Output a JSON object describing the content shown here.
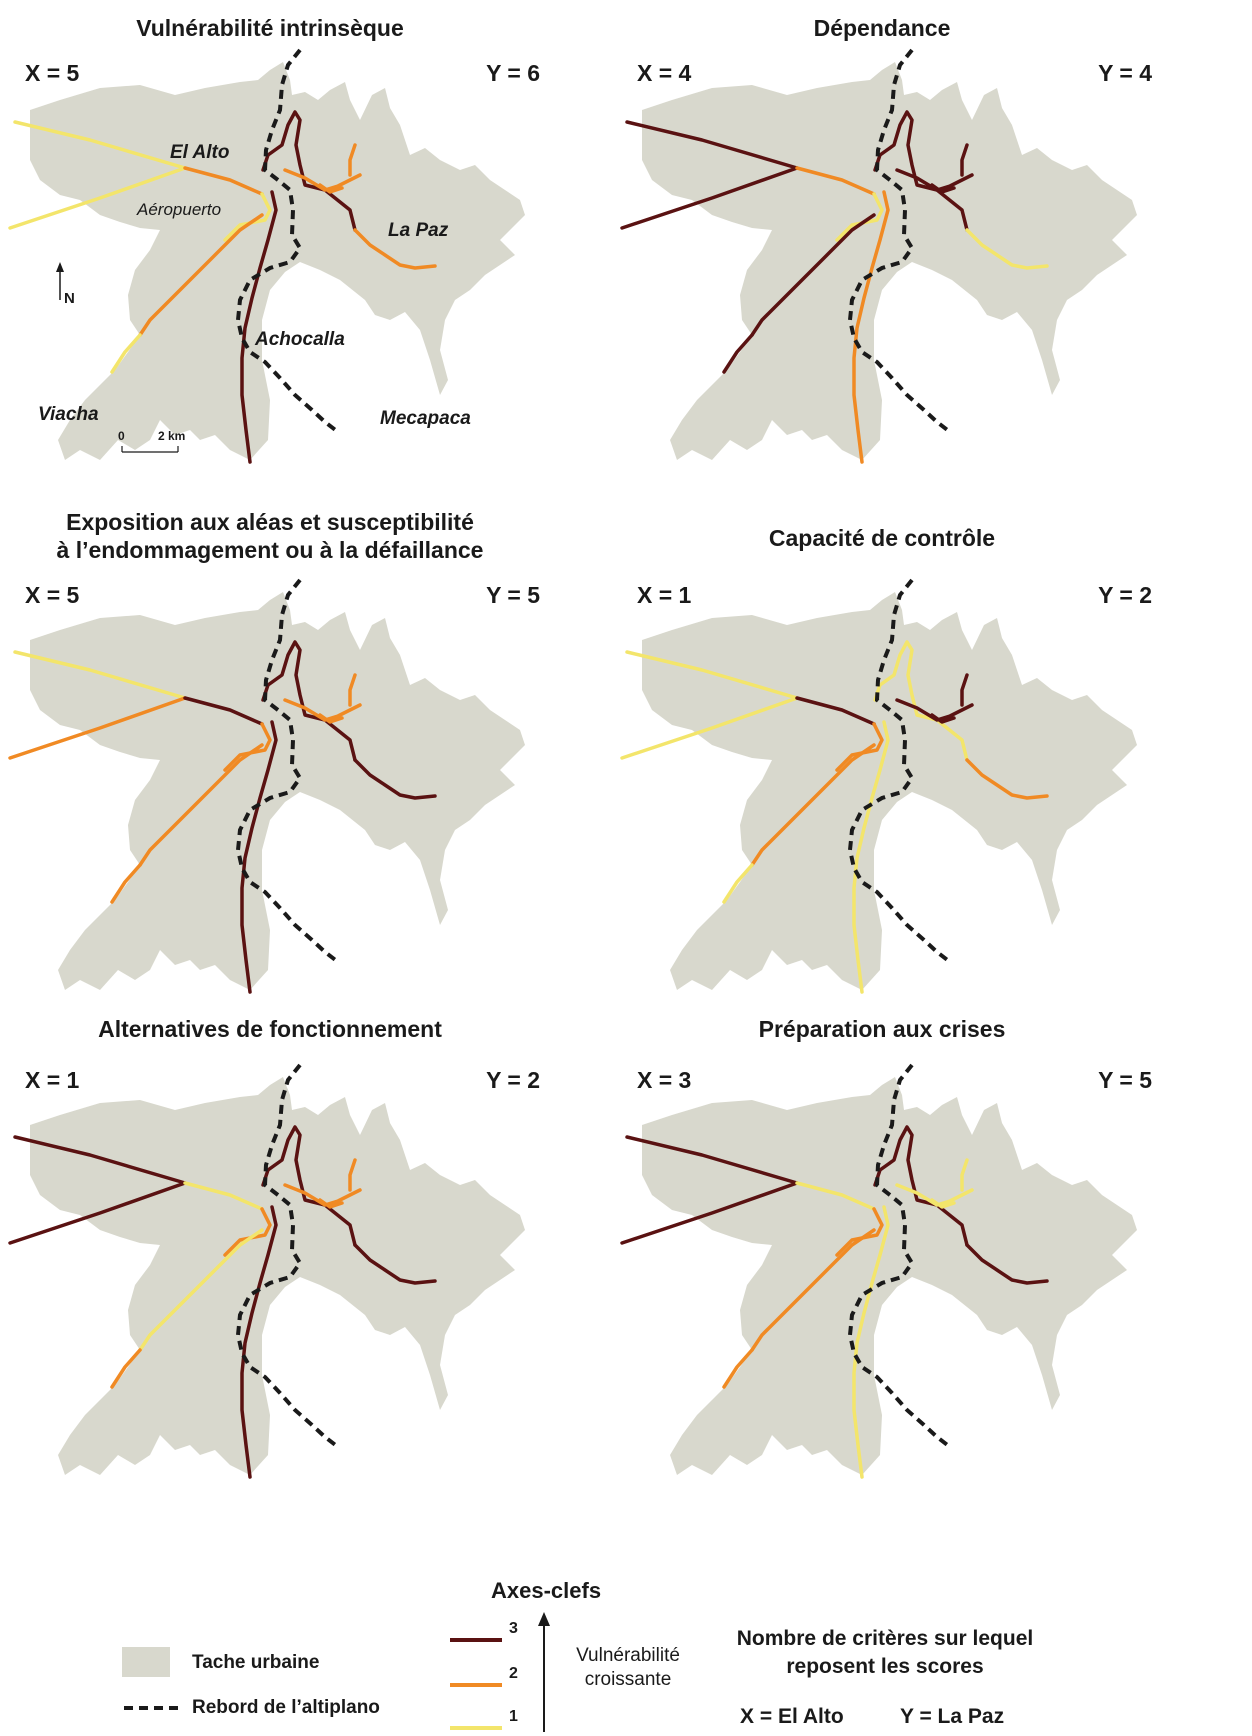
{
  "panels": [
    {
      "title": "Vulnérabilité intrinsèque",
      "x_score": "X = 5",
      "y_score": "Y = 6",
      "roads": {
        "west_upper": 1,
        "west_lower": 1,
        "west_main": 2,
        "southwest": 2,
        "southwest_tip": 1,
        "airport_link": 1,
        "south": 3,
        "north": 3,
        "centre": 2,
        "east": 2
      }
    },
    {
      "title": "Dépendance",
      "x_score": "X = 4",
      "y_score": "Y = 4",
      "roads": {
        "west_upper": 3,
        "west_lower": 3,
        "west_main": 2,
        "southwest": 3,
        "southwest_tip": 3,
        "airport_link": 1,
        "south": 2,
        "north": 3,
        "centre": 3,
        "east": 1
      }
    },
    {
      "title": "Exposition aux aléas et susceptibilité\nà l’endommagement ou à la défaillance",
      "x_score": "X = 5",
      "y_score": "Y = 5",
      "roads": {
        "west_upper": 1,
        "west_lower": 2,
        "west_main": 3,
        "southwest": 2,
        "southwest_tip": 2,
        "airport_link": 2,
        "south": 3,
        "north": 3,
        "centre": 2,
        "east": 3
      }
    },
    {
      "title": "Capacité de contrôle",
      "x_score": "X = 1",
      "y_score": "Y = 2",
      "roads": {
        "west_upper": 1,
        "west_lower": 1,
        "west_main": 3,
        "southwest": 2,
        "southwest_tip": 1,
        "airport_link": 2,
        "south": 1,
        "north": 1,
        "centre": 3,
        "east": 2
      }
    },
    {
      "title": "Alternatives de fonctionnement",
      "x_score": "X = 1",
      "y_score": "Y = 2",
      "roads": {
        "west_upper": 3,
        "west_lower": 3,
        "west_main": 1,
        "southwest": 1,
        "southwest_tip": 2,
        "airport_link": 2,
        "south": 3,
        "north": 3,
        "centre": 2,
        "east": 3
      }
    },
    {
      "title": "Préparation aux crises",
      "x_score": "X = 3",
      "y_score": "Y = 5",
      "roads": {
        "west_upper": 3,
        "west_lower": 3,
        "west_main": 1,
        "southwest": 2,
        "southwest_tip": 2,
        "airport_link": 2,
        "south": 1,
        "north": 3,
        "centre": 1,
        "east": 3
      }
    }
  ],
  "place_labels": {
    "el_alto": "El Alto",
    "aeropuerto": "Aéropuerto",
    "la_paz": "La Paz",
    "achocalla": "Achocalla",
    "viacha": "Viacha",
    "mecapaca": "Mecapaca"
  },
  "north_arrow": "N",
  "scale_bar": {
    "zero": "0",
    "distance": "2 km"
  },
  "legend": {
    "urban_area": "Tache urbaine",
    "escarpment": "Rebord de l’altiplano",
    "axes_title": "Axes-clefs",
    "class_3": "3",
    "class_2": "2",
    "class_1": "1",
    "arrow_label": "Vulnérabilité croissante",
    "criteria_title": "Nombre de critères sur lequel reposent les scores",
    "x_def": "X = El Alto",
    "y_def": "Y = La Paz"
  },
  "colors": {
    "urban": "#d8d8cd",
    "class_3": "#5a1212",
    "class_2": "#f08a24",
    "class_1": "#f3e56b",
    "escarpment": "#1a1a1a"
  }
}
